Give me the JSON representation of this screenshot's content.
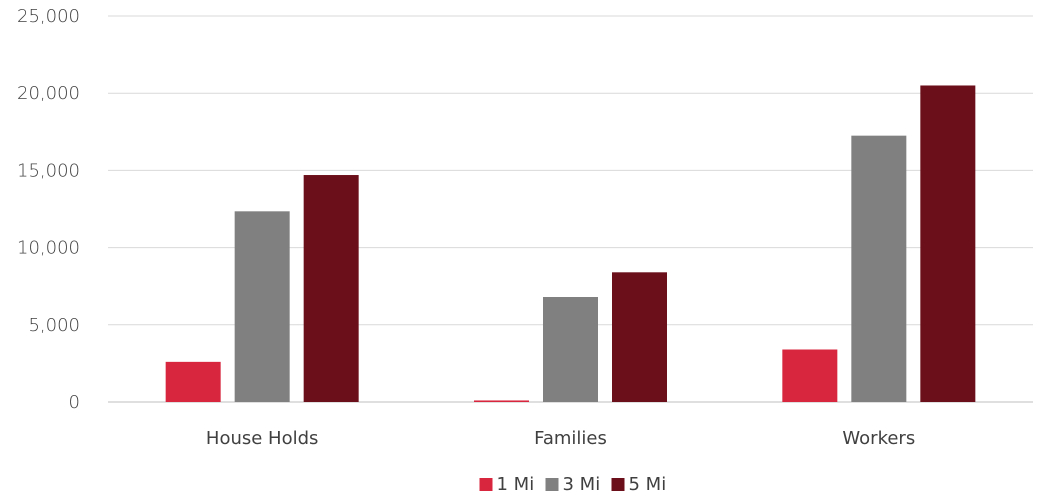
{
  "chart_data": {
    "type": "bar",
    "categories": [
      "House Holds",
      "Families",
      "Workers"
    ],
    "series": [
      {
        "name": "1 Mi",
        "color": "#D7263D",
        "values": [
          2600,
          100,
          3400
        ]
      },
      {
        "name": "3 Mi",
        "color": "#808080",
        "values": [
          12350,
          6800,
          17250
        ]
      },
      {
        "name": "5 Mi",
        "color": "#6B0F1A",
        "values": [
          14700,
          8400,
          20500
        ]
      }
    ],
    "ylim": [
      0,
      25000
    ],
    "yticks": [
      "0",
      "5,000",
      "10,000",
      "15,000",
      "20,000",
      "25,000"
    ],
    "ytick_values": [
      0,
      5000,
      10000,
      15000,
      20000,
      25000
    ],
    "grid": true,
    "legend_position": "bottom"
  }
}
